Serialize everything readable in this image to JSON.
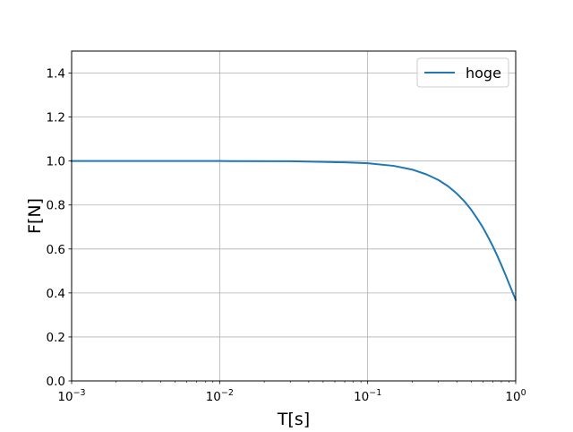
{
  "chart_data": {
    "type": "line",
    "xlabel": "T[s]",
    "ylabel": "F[N]",
    "xscale": "log",
    "xlim": [
      0.001,
      1
    ],
    "ylim": [
      0,
      1.5
    ],
    "grid": true,
    "legend_position": "top-right",
    "x_ticks": [
      {
        "value": 0.001,
        "base": "10",
        "exp": "−3"
      },
      {
        "value": 0.01,
        "base": "10",
        "exp": "−2"
      },
      {
        "value": 0.1,
        "base": "10",
        "exp": "−1"
      },
      {
        "value": 1,
        "base": "10",
        "exp": "0"
      }
    ],
    "y_ticks": [
      {
        "value": 0.0,
        "label": "0.0"
      },
      {
        "value": 0.2,
        "label": "0.2"
      },
      {
        "value": 0.4,
        "label": "0.4"
      },
      {
        "value": 0.6,
        "label": "0.6"
      },
      {
        "value": 0.8,
        "label": "0.8"
      },
      {
        "value": 1.0,
        "label": "1.0"
      },
      {
        "value": 1.2,
        "label": "1.2"
      },
      {
        "value": 1.4,
        "label": "1.4"
      }
    ],
    "series": [
      {
        "name": "hoge",
        "color": "#1f77b4",
        "x": [
          0.001,
          0.003,
          0.01,
          0.03,
          0.05,
          0.07,
          0.1,
          0.15,
          0.2,
          0.25,
          0.3,
          0.35,
          0.4,
          0.45,
          0.5,
          0.55,
          0.6,
          0.65,
          0.7,
          0.75,
          0.8,
          0.85,
          0.9,
          0.95,
          1.0
        ],
        "y": [
          1.0,
          1.0,
          1.0,
          0.999,
          0.996,
          0.994,
          0.99,
          0.978,
          0.961,
          0.939,
          0.914,
          0.885,
          0.852,
          0.817,
          0.779,
          0.738,
          0.698,
          0.655,
          0.613,
          0.57,
          0.527,
          0.485,
          0.444,
          0.405,
          0.368
        ]
      }
    ]
  }
}
